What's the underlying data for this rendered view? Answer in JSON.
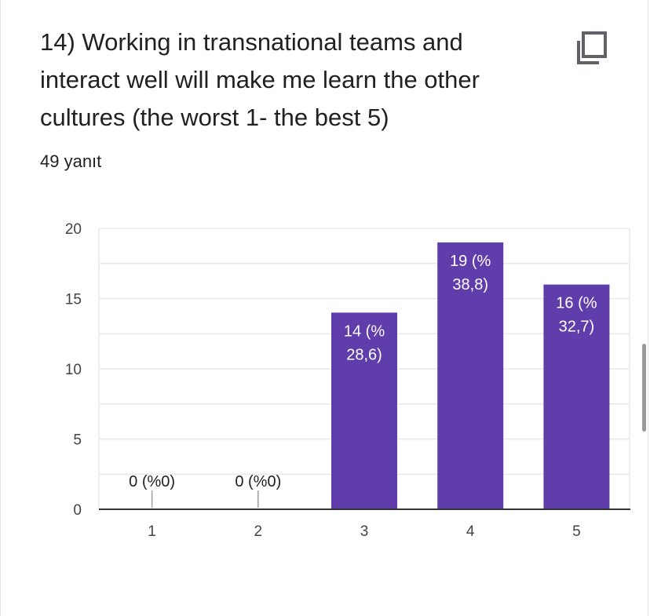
{
  "question": {
    "title": "14) Working in transnational teams and interact well will make me learn the other cultures (the worst 1- the best 5)",
    "response_count": "49 yanıt"
  },
  "icons": {
    "copy": "copy-icon"
  },
  "colors": {
    "bar": "#5f3dab",
    "grid": "#e8e8e8",
    "axis": "#333333"
  },
  "chart_data": {
    "type": "bar",
    "categories": [
      "1",
      "2",
      "3",
      "4",
      "5"
    ],
    "values": [
      0,
      0,
      14,
      19,
      16
    ],
    "data_labels": [
      [
        "0 (%0)"
      ],
      [
        "0 (%0)"
      ],
      [
        "14 (%",
        "28,6)"
      ],
      [
        "19 (%",
        "38,8)"
      ],
      [
        "16 (%",
        "32,7)"
      ]
    ],
    "ylim": [
      0,
      20
    ],
    "yticks": [
      "0",
      "5",
      "10",
      "15",
      "20"
    ],
    "grid": true,
    "legend": "none"
  }
}
